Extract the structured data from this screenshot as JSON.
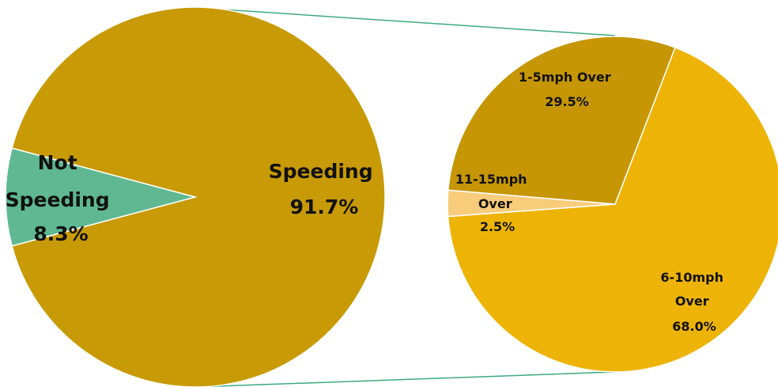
{
  "chart_data": [
    {
      "type": "pie",
      "title": "",
      "slices": [
        {
          "label": [
            "Not",
            "Speeding"
          ],
          "pct_text": "8.3%",
          "value": 8.3,
          "color": "#5FB891"
        },
        {
          "label": [
            "Speeding"
          ],
          "pct_text": "91.7%",
          "value": 91.7,
          "color": "#C89A05"
        }
      ]
    },
    {
      "type": "pie",
      "title": "",
      "breakdown_of": "Speeding",
      "slices": [
        {
          "label": [
            "1-5mph Over"
          ],
          "pct_text": "29.5%",
          "value": 29.5,
          "color": "#C69605"
        },
        {
          "label": [
            "6-10mph",
            "Over"
          ],
          "pct_text": "68.0%",
          "value": 68.0,
          "color": "#EDB407"
        },
        {
          "label": [
            "11-15mph",
            "Over"
          ],
          "pct_text": "2.5%",
          "value": 2.5,
          "color": "#F8CC7A"
        }
      ]
    }
  ],
  "connector_color": "#3DAA7F"
}
